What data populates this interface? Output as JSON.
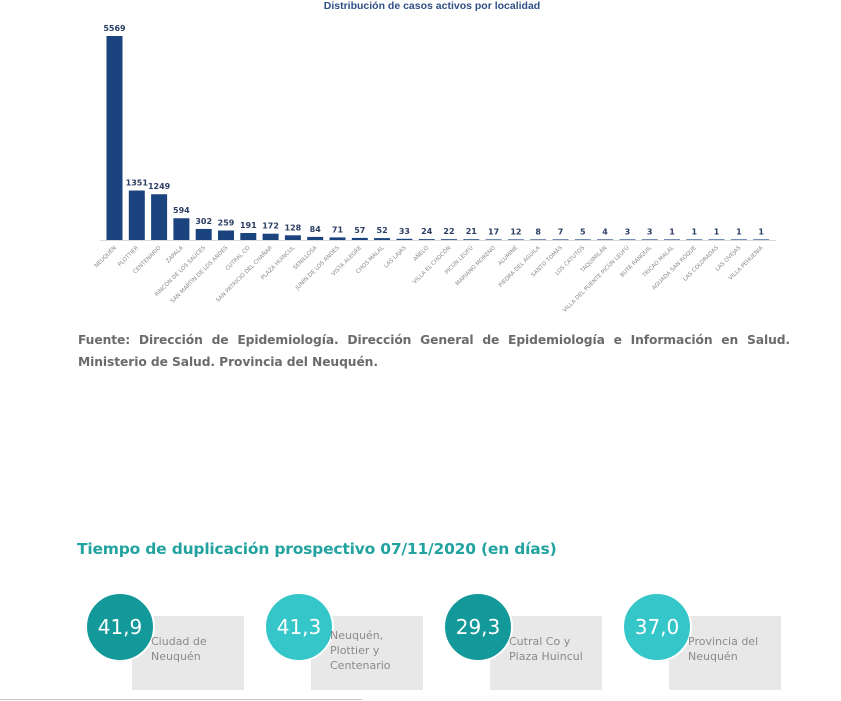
{
  "chart_data": {
    "type": "bar",
    "title": "Distribución de casos activos por localidad",
    "xlabel": "",
    "ylabel": "",
    "ylim": [
      0,
      5569
    ],
    "grid": false,
    "legend": "none",
    "bar_color": "#1b437e",
    "categories": [
      "NEUQUÉN",
      "PLOTTIER",
      "CENTENARIO",
      "ZAPALA",
      "RINCÓN DE LOS SAUCES",
      "SAN MARTÍN DE LOS ANDES",
      "CUTRAL CO",
      "SAN PATRICIO DEL CHAÑAR",
      "PLAZA HUINCUL",
      "SENILLOSA",
      "JUNÍN DE LOS ANDES",
      "VISTA ALEGRE",
      "CHOS MALAL",
      "LAS LAJAS",
      "AÑELO",
      "VILLA EL CHOCÓN",
      "PICÚN LEUFÚ",
      "MARIANO MORENO",
      "ALUMINÉ",
      "PIEDRA DEL ÁGUILA",
      "SANTO TOMÁS",
      "LOS CATUTOS",
      "TAQUIMILÁN",
      "VILLA DEL PUENTE PICÚN LEUFÚ",
      "BUTA RANQUIL",
      "TRICAO MALAL",
      "AGUADA SAN ROQUE",
      "LAS COLORADAS",
      "LAS OVEJAS",
      "VILLA PEHUENIA"
    ],
    "values": [
      5569,
      1351,
      1249,
      594,
      302,
      259,
      191,
      172,
      128,
      84,
      71,
      57,
      52,
      33,
      24,
      22,
      21,
      17,
      12,
      8,
      7,
      5,
      4,
      3,
      3,
      1,
      1,
      1,
      1,
      1
    ]
  },
  "source_note": "Fuente: Dirección de Epidemiología. Dirección General de Epidemiología e Información en Salud. Ministerio de Salud. Provincia del Neuquén.",
  "duplication": {
    "title": "Tiempo de duplicación prospectivo 07/11/2020 (en días)",
    "cards": [
      {
        "value": "41,9",
        "label": "Ciudad de Neuquén",
        "color": "#14999a"
      },
      {
        "value": "41,3",
        "label": "Neuquén, Plottier y Centenario",
        "color": "#35c6c9"
      },
      {
        "value": "29,3",
        "label": "Cutral Co y Plaza Huincul",
        "color": "#14999a"
      },
      {
        "value": "37,0",
        "label": "Provincia del Neuquén",
        "color": "#35c6c9"
      }
    ]
  }
}
